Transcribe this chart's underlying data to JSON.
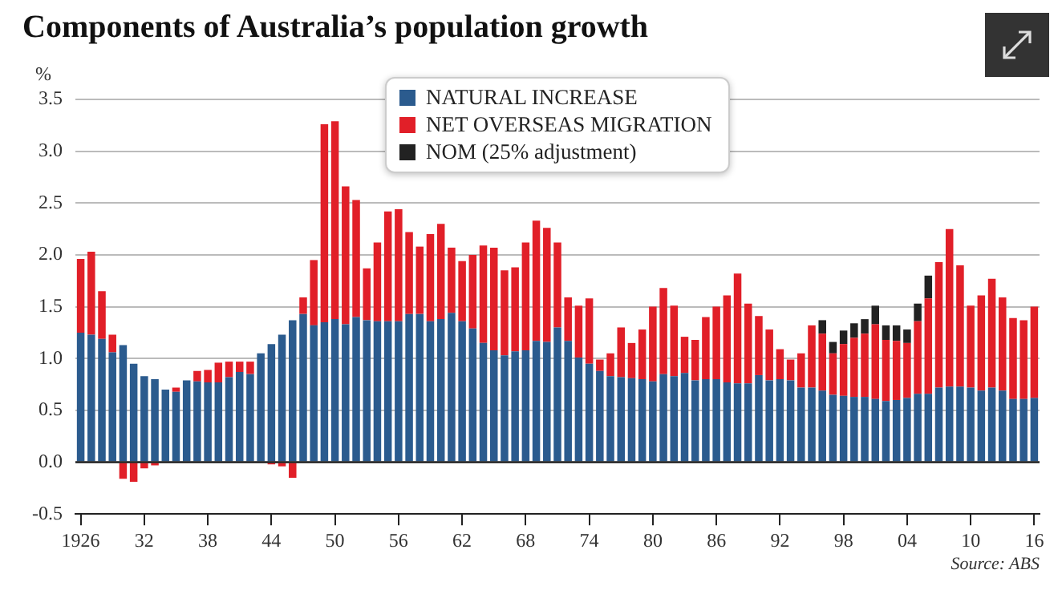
{
  "chart_data": {
    "type": "bar",
    "title": "Components of Australia’s population growth",
    "ylabel": "%",
    "categories": [
      "1926",
      null,
      null,
      null,
      null,
      null,
      "32",
      null,
      null,
      null,
      null,
      null,
      "38",
      null,
      null,
      null,
      null,
      null,
      "44",
      null,
      null,
      null,
      null,
      null,
      "50",
      null,
      null,
      null,
      null,
      null,
      "56",
      null,
      null,
      null,
      null,
      null,
      "62",
      null,
      null,
      null,
      null,
      null,
      "68",
      null,
      null,
      null,
      null,
      null,
      "74",
      null,
      null,
      null,
      null,
      null,
      "80",
      null,
      null,
      null,
      null,
      null,
      "86",
      null,
      null,
      null,
      null,
      null,
      "92",
      null,
      null,
      null,
      null,
      null,
      "98",
      null,
      null,
      null,
      null,
      null,
      "04",
      null,
      null,
      null,
      null,
      null,
      "10",
      null,
      null,
      null,
      null,
      null,
      "16"
    ],
    "series": [
      {
        "name": "NATURAL INCREASE",
        "color": "#2b5b8e",
        "values": [
          1.25,
          1.23,
          1.19,
          1.06,
          1.13,
          0.95,
          0.83,
          0.8,
          0.7,
          0.68,
          0.79,
          0.78,
          0.77,
          0.77,
          0.82,
          0.87,
          0.85,
          1.05,
          1.14,
          1.23,
          1.37,
          1.43,
          1.32,
          1.35,
          1.38,
          1.33,
          1.4,
          1.37,
          1.36,
          1.36,
          1.36,
          1.43,
          1.43,
          1.36,
          1.38,
          1.44,
          1.36,
          1.29,
          1.15,
          1.08,
          1.03,
          1.07,
          1.08,
          1.17,
          1.16,
          1.3,
          1.17,
          1.01,
          0.95,
          0.88,
          0.83,
          0.82,
          0.81,
          0.8,
          0.78,
          0.85,
          0.83,
          0.86,
          0.79,
          0.8,
          0.8,
          0.77,
          0.76,
          0.76,
          0.84,
          0.79,
          0.8,
          0.79,
          0.72,
          0.72,
          0.69,
          0.65,
          0.64,
          0.63,
          0.63,
          0.61,
          0.59,
          0.6,
          0.62,
          0.66,
          0.66,
          0.72,
          0.73,
          0.73,
          0.72,
          0.69,
          0.72,
          0.69,
          0.61,
          0.61,
          0.62
        ]
      },
      {
        "name": "NET OVERSEAS MIGRATION",
        "color": "#e11f28",
        "values": [
          0.71,
          0.8,
          0.46,
          0.17,
          -0.16,
          -0.19,
          -0.06,
          -0.03,
          0,
          0.04,
          0,
          0.1,
          0.12,
          0.19,
          0.15,
          0.1,
          0.12,
          0,
          -0.02,
          -0.04,
          -0.15,
          0.16,
          0.63,
          1.91,
          1.91,
          1.33,
          1.13,
          0.5,
          0.76,
          1.06,
          1.08,
          0.79,
          0.65,
          0.84,
          0.92,
          0.63,
          0.58,
          0.71,
          0.94,
          0.99,
          0.82,
          0.81,
          1.04,
          1.16,
          1.1,
          0.82,
          0.42,
          0.5,
          0.63,
          0.11,
          0.22,
          0.48,
          0.34,
          0.48,
          0.72,
          0.83,
          0.68,
          0.35,
          0.39,
          0.6,
          0.7,
          0.84,
          1.06,
          0.77,
          0.57,
          0.49,
          0.29,
          0.2,
          0.33,
          0.6,
          0.55,
          0.4,
          0.5,
          0.57,
          0.61,
          0.72,
          0.59,
          0.57,
          0.53,
          0.7,
          0.92,
          1.21,
          1.52,
          1.17,
          0.79,
          0.92,
          1.05,
          0.9,
          0.78,
          0.76,
          0.88
        ]
      },
      {
        "name": "NOM (25% adjustment)",
        "color": "#222222",
        "values": [
          null,
          null,
          null,
          null,
          null,
          null,
          null,
          null,
          null,
          null,
          null,
          null,
          null,
          null,
          null,
          null,
          null,
          null,
          null,
          null,
          null,
          null,
          null,
          null,
          null,
          null,
          null,
          null,
          null,
          null,
          null,
          null,
          null,
          null,
          null,
          null,
          null,
          null,
          null,
          null,
          null,
          null,
          null,
          null,
          null,
          null,
          null,
          null,
          null,
          null,
          null,
          null,
          null,
          null,
          null,
          null,
          null,
          null,
          null,
          null,
          null,
          null,
          null,
          null,
          null,
          null,
          null,
          null,
          null,
          null,
          0.13,
          0.11,
          0.13,
          0.14,
          0.14,
          0.18,
          0.14,
          0.15,
          0.13,
          0.17,
          0.22,
          null,
          null,
          null,
          null,
          null,
          null,
          null,
          null,
          null,
          null
        ]
      }
    ],
    "stacked": true,
    "ylim": [
      -0.5,
      3.5
    ],
    "yticks": [
      {
        "value": -0.5,
        "label": "-0.5"
      },
      {
        "value": 0,
        "label": "0.0"
      },
      {
        "value": 0.5,
        "label": "0.5"
      },
      {
        "value": 1,
        "label": "1.0"
      },
      {
        "value": 1.5,
        "label": "1.5"
      },
      {
        "value": 2,
        "label": "2.0"
      },
      {
        "value": 2.5,
        "label": "2.5"
      },
      {
        "value": 3,
        "label": "3.0"
      },
      {
        "value": 3.5,
        "label": "3.5"
      }
    ],
    "grid": "y",
    "legend": "top",
    "annotations": [
      "Source: ABS"
    ]
  }
}
